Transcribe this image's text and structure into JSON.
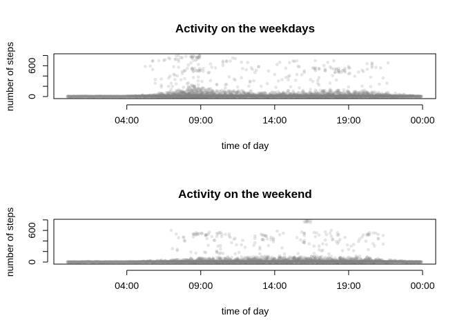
{
  "chart_data": [
    {
      "type": "scatter",
      "title": "Activity on the weekdays",
      "xlabel": "time of day",
      "ylabel": "number of steps",
      "x_ticks": [
        {
          "value": "04:00",
          "label": "04:00"
        },
        {
          "value": "09:00",
          "label": "09:00"
        },
        {
          "value": "14:00",
          "label": "14:00"
        },
        {
          "value": "19:00",
          "label": "19:00"
        },
        {
          "value": "24:00",
          "label": "00:00"
        }
      ],
      "y_ticks": [
        {
          "value": 0,
          "label": "0"
        },
        {
          "value": 200,
          "label": ""
        },
        {
          "value": 400,
          "label": ""
        },
        {
          "value": 600,
          "label": "600"
        },
        {
          "value": 800,
          "label": ""
        }
      ],
      "xlim": [
        "00:00",
        "24:00"
      ],
      "ylim": [
        0,
        806
      ],
      "point_color": "#808080",
      "point_alpha": 0.2,
      "grid": false,
      "legend": "none",
      "profile": [
        [
          "00:00",
          0
        ],
        [
          "04:00",
          5
        ],
        [
          "05:30",
          40
        ],
        [
          "06:30",
          90
        ],
        [
          "08:00",
          160
        ],
        [
          "08:35",
          230
        ],
        [
          "09:00",
          180
        ],
        [
          "10:00",
          110
        ],
        [
          "12:00",
          90
        ],
        [
          "14:00",
          80
        ],
        [
          "16:00",
          100
        ],
        [
          "18:00",
          120
        ],
        [
          "19:00",
          110
        ],
        [
          "21:00",
          80
        ],
        [
          "22:30",
          40
        ],
        [
          "23:55",
          5
        ]
      ],
      "clusters": [
        {
          "from": "06:30",
          "to": "08:00",
          "y_from": 700,
          "y_to": 806,
          "count": 12
        },
        {
          "from": "08:20",
          "to": "09:00",
          "y_from": 700,
          "y_to": 806,
          "count": 18
        },
        {
          "from": "08:20",
          "to": "09:10",
          "y_from": 480,
          "y_to": 560,
          "count": 14
        },
        {
          "from": "10:30",
          "to": "11:30",
          "y_from": 640,
          "y_to": 760,
          "count": 6
        },
        {
          "from": "16:30",
          "to": "17:30",
          "y_from": 500,
          "y_to": 560,
          "count": 10
        },
        {
          "from": "18:00",
          "to": "19:00",
          "y_from": 460,
          "y_to": 560,
          "count": 14
        },
        {
          "from": "20:30",
          "to": "21:00",
          "y_from": 560,
          "y_to": 600,
          "count": 2
        },
        {
          "from": "05:00",
          "to": "22:00",
          "y_from": 150,
          "y_to": 700,
          "count": 140
        }
      ]
    },
    {
      "type": "scatter",
      "title": "Activity on the weekend",
      "xlabel": "time of day",
      "ylabel": "number of steps",
      "x_ticks": [
        {
          "value": "04:00",
          "label": "04:00"
        },
        {
          "value": "09:00",
          "label": "09:00"
        },
        {
          "value": "14:00",
          "label": "14:00"
        },
        {
          "value": "19:00",
          "label": "19:00"
        },
        {
          "value": "24:00",
          "label": "00:00"
        }
      ],
      "y_ticks": [
        {
          "value": 0,
          "label": "0"
        },
        {
          "value": 200,
          "label": ""
        },
        {
          "value": 400,
          "label": ""
        },
        {
          "value": 600,
          "label": "600"
        },
        {
          "value": 800,
          "label": ""
        }
      ],
      "xlim": [
        "00:00",
        "24:00"
      ],
      "ylim": [
        0,
        785
      ],
      "point_color": "#808080",
      "point_alpha": 0.2,
      "grid": false,
      "legend": "none",
      "profile": [
        [
          "00:00",
          0
        ],
        [
          "04:00",
          5
        ],
        [
          "06:00",
          25
        ],
        [
          "08:00",
          60
        ],
        [
          "09:00",
          80
        ],
        [
          "12:00",
          90
        ],
        [
          "14:00",
          95
        ],
        [
          "16:00",
          100
        ],
        [
          "18:00",
          95
        ],
        [
          "20:00",
          80
        ],
        [
          "22:00",
          30
        ],
        [
          "23:55",
          5
        ]
      ],
      "clusters": [
        {
          "from": "08:30",
          "to": "09:30",
          "y_from": 500,
          "y_to": 560,
          "count": 12
        },
        {
          "from": "10:00",
          "to": "11:00",
          "y_from": 480,
          "y_to": 560,
          "count": 6
        },
        {
          "from": "12:30",
          "to": "14:00",
          "y_from": 420,
          "y_to": 520,
          "count": 12
        },
        {
          "from": "15:50",
          "to": "16:30",
          "y_from": 740,
          "y_to": 785,
          "count": 8
        },
        {
          "from": "16:00",
          "to": "18:30",
          "y_from": 300,
          "y_to": 560,
          "count": 14
        },
        {
          "from": "20:00",
          "to": "20:40",
          "y_from": 500,
          "y_to": 560,
          "count": 8
        },
        {
          "from": "07:00",
          "to": "21:30",
          "y_from": 150,
          "y_to": 600,
          "count": 110
        }
      ]
    }
  ]
}
